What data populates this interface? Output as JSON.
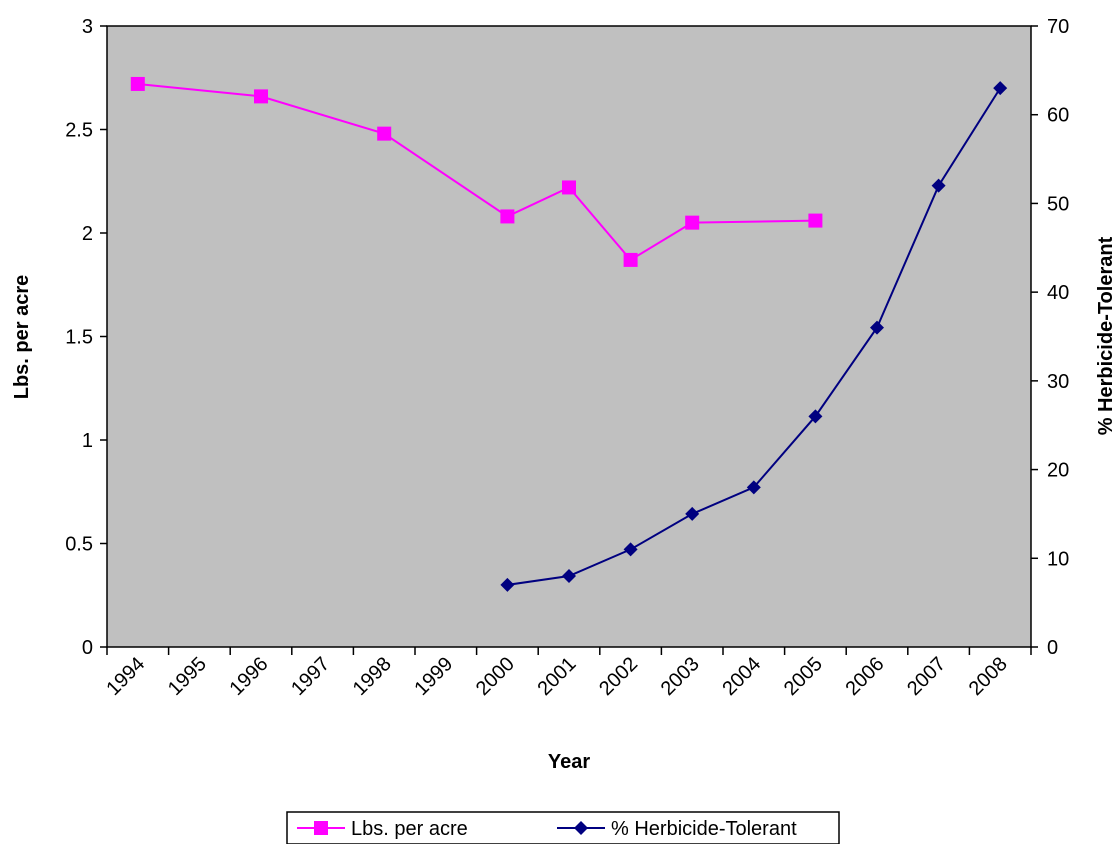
{
  "chart_data": {
    "type": "line",
    "xlabel": "Year",
    "ylabel_left": "Lbs. per acre",
    "ylabel_right": "% Herbicide-Tolerant",
    "categories": [
      "1994",
      "1995",
      "1996",
      "1997",
      "1998",
      "1999",
      "2000",
      "2001",
      "2002",
      "2003",
      "2004",
      "2005",
      "2006",
      "2007",
      "2008"
    ],
    "ylim_left": [
      0,
      3
    ],
    "yticks_left": [
      "0",
      "0.5",
      "1",
      "1.5",
      "2",
      "2.5",
      "3"
    ],
    "ylim_right": [
      0,
      70
    ],
    "yticks_right": [
      "0",
      "10",
      "20",
      "30",
      "40",
      "50",
      "60",
      "70"
    ],
    "plot_background": "#c0c0c0",
    "legend_position": "bottom",
    "series": [
      {
        "name": "Lbs. per acre",
        "axis": "left",
        "color": "#ff00ff",
        "marker": "square",
        "points": [
          {
            "x": "1994",
            "y": 2.72
          },
          {
            "x": "1996",
            "y": 2.66
          },
          {
            "x": "1998",
            "y": 2.48
          },
          {
            "x": "2000",
            "y": 2.08
          },
          {
            "x": "2001",
            "y": 2.22
          },
          {
            "x": "2002",
            "y": 1.87
          },
          {
            "x": "2003",
            "y": 2.05
          },
          {
            "x": "2005",
            "y": 2.06
          }
        ]
      },
      {
        "name": "% Herbicide-Tolerant",
        "axis": "right",
        "color": "#000080",
        "marker": "diamond",
        "points": [
          {
            "x": "2000",
            "y": 7
          },
          {
            "x": "2001",
            "y": 8
          },
          {
            "x": "2002",
            "y": 11
          },
          {
            "x": "2003",
            "y": 15
          },
          {
            "x": "2004",
            "y": 18
          },
          {
            "x": "2005",
            "y": 26
          },
          {
            "x": "2006",
            "y": 36
          },
          {
            "x": "2007",
            "y": 52
          },
          {
            "x": "2008",
            "y": 63
          }
        ]
      }
    ]
  }
}
